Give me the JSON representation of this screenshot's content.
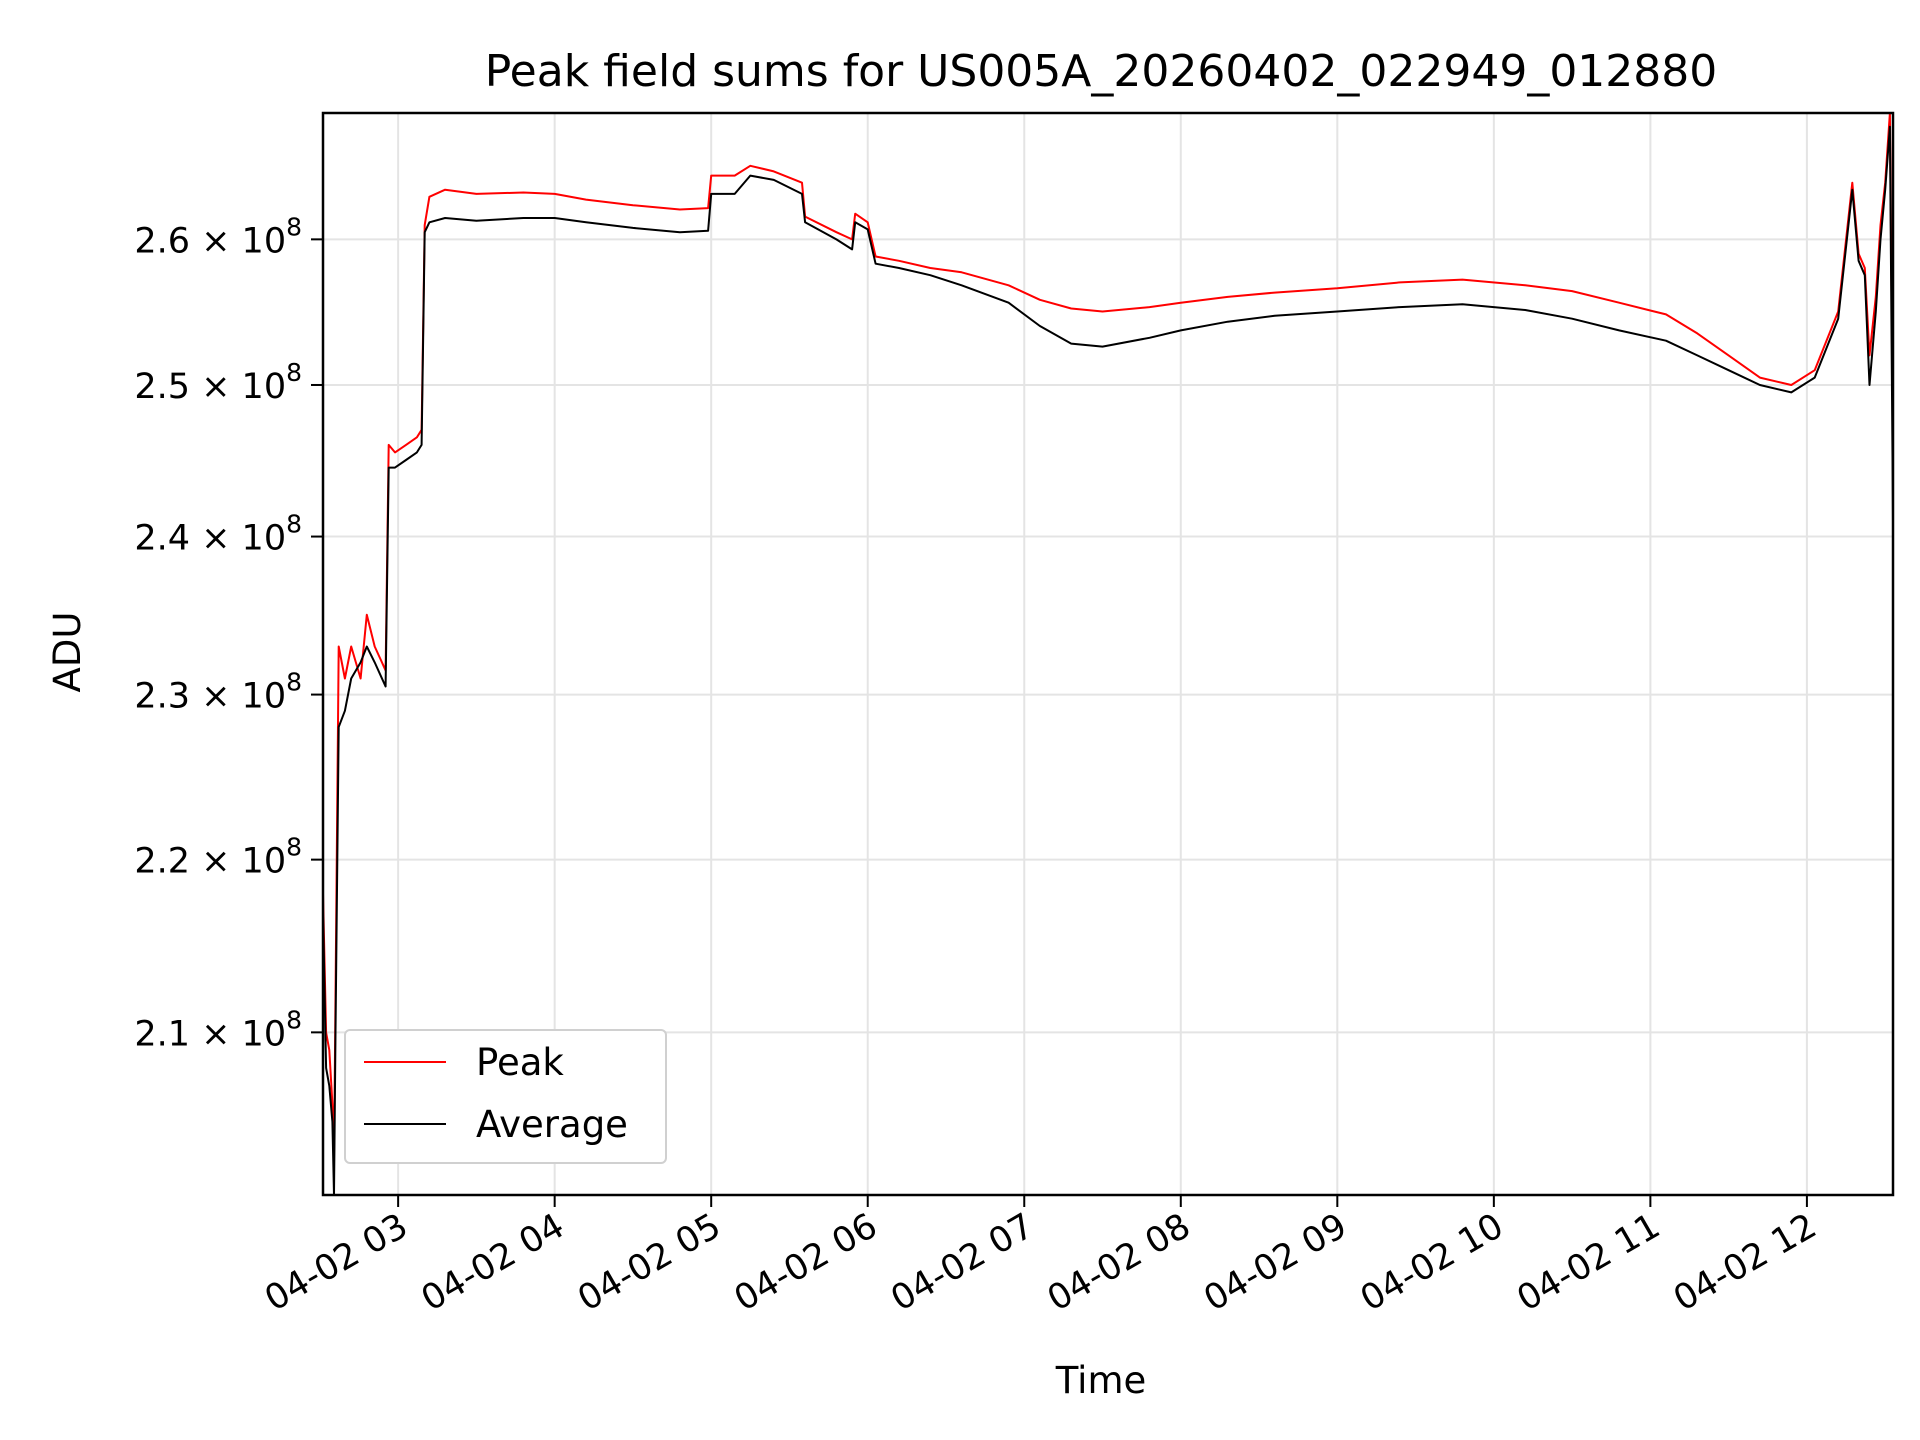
{
  "chart_data": {
    "type": "line",
    "title": "Peak field sums for US005A_20260402_022949_012880",
    "xlabel": "Time",
    "ylabel": "ADU",
    "x_ticks": [
      "04-02 03",
      "04-02 04",
      "04-02 05",
      "04-02 06",
      "04-02 07",
      "04-02 08",
      "04-02 09",
      "04-02 10",
      "04-02 11",
      "04-02 12"
    ],
    "x_tick_hours": [
      3,
      4,
      5,
      6,
      7,
      8,
      9,
      10,
      11,
      12
    ],
    "xlim_hours": [
      2.52,
      12.55
    ],
    "y_ticks": [
      {
        "value": 210000000.0,
        "mantissa": "2.1",
        "label": "2.1 × 10^8"
      },
      {
        "value": 220000000.0,
        "mantissa": "2.2",
        "label": "2.2 × 10^8"
      },
      {
        "value": 230000000.0,
        "mantissa": "2.3",
        "label": "2.3 × 10^8"
      },
      {
        "value": 240000000.0,
        "mantissa": "2.4",
        "label": "2.4 × 10^8"
      },
      {
        "value": 250000000.0,
        "mantissa": "2.5",
        "label": "2.5 × 10^8"
      },
      {
        "value": 260000000.0,
        "mantissa": "2.6",
        "label": "2.6 × 10^8"
      }
    ],
    "y_multiplier_text": "× 10",
    "y_exponent": "8",
    "yscale": "log",
    "ylim": [
      201000000.0,
      269000000.0
    ],
    "grid": true,
    "legend_position": "lower-left",
    "series": [
      {
        "name": "Peak",
        "color": "#ff0000",
        "points": [
          [
            2.52,
            218000000.0
          ],
          [
            2.54,
            210000000.0
          ],
          [
            2.56,
            209000000.0
          ],
          [
            2.58,
            206000000.0
          ],
          [
            2.59,
            203000000.0
          ],
          [
            2.6,
            212000000.0
          ],
          [
            2.62,
            233000000.0
          ],
          [
            2.66,
            231000000.0
          ],
          [
            2.7,
            233000000.0
          ],
          [
            2.76,
            231000000.0
          ],
          [
            2.8,
            235000000.0
          ],
          [
            2.85,
            233000000.0
          ],
          [
            2.92,
            231500000.0
          ],
          [
            2.94,
            246000000.0
          ],
          [
            2.98,
            245500000.0
          ],
          [
            3.05,
            246000000.0
          ],
          [
            3.12,
            246500000.0
          ],
          [
            3.15,
            247000000.0
          ],
          [
            3.17,
            261000000.0
          ],
          [
            3.2,
            263000000.0
          ],
          [
            3.3,
            263500000.0
          ],
          [
            3.5,
            263200000.0
          ],
          [
            3.8,
            263300000.0
          ],
          [
            4.0,
            263200000.0
          ],
          [
            4.2,
            262800000.0
          ],
          [
            4.5,
            262400000.0
          ],
          [
            4.8,
            262100000.0
          ],
          [
            4.98,
            262200000.0
          ],
          [
            5.0,
            264500000.0
          ],
          [
            5.15,
            264500000.0
          ],
          [
            5.25,
            265200000.0
          ],
          [
            5.4,
            264800000.0
          ],
          [
            5.58,
            264000000.0
          ],
          [
            5.6,
            261600000.0
          ],
          [
            5.8,
            260500000.0
          ],
          [
            5.9,
            260000000.0
          ],
          [
            5.92,
            261800000.0
          ],
          [
            6.0,
            261200000.0
          ],
          [
            6.05,
            258800000.0
          ],
          [
            6.2,
            258500000.0
          ],
          [
            6.4,
            258000000.0
          ],
          [
            6.6,
            257700000.0
          ],
          [
            6.9,
            256800000.0
          ],
          [
            7.1,
            255800000.0
          ],
          [
            7.3,
            255200000.0
          ],
          [
            7.5,
            255000000.0
          ],
          [
            7.8,
            255300000.0
          ],
          [
            8.0,
            255600000.0
          ],
          [
            8.3,
            256000000.0
          ],
          [
            8.6,
            256300000.0
          ],
          [
            9.0,
            256600000.0
          ],
          [
            9.4,
            257000000.0
          ],
          [
            9.8,
            257200000.0
          ],
          [
            10.2,
            256800000.0
          ],
          [
            10.5,
            256400000.0
          ],
          [
            10.8,
            255600000.0
          ],
          [
            11.1,
            254800000.0
          ],
          [
            11.3,
            253500000.0
          ],
          [
            11.5,
            252000000.0
          ],
          [
            11.7,
            250500000.0
          ],
          [
            11.9,
            250000000.0
          ],
          [
            12.05,
            251000000.0
          ],
          [
            12.2,
            255000000.0
          ],
          [
            12.29,
            264000000.0
          ],
          [
            12.33,
            259000000.0
          ],
          [
            12.37,
            258000000.0
          ],
          [
            12.4,
            252000000.0
          ],
          [
            12.44,
            256000000.0
          ],
          [
            12.47,
            261000000.0
          ],
          [
            12.5,
            264000000.0
          ],
          [
            12.53,
            269000000.0
          ],
          [
            12.55,
            245000000.0
          ]
        ]
      },
      {
        "name": "Average",
        "color": "#000000",
        "points": [
          [
            2.52,
            217000000.0
          ],
          [
            2.54,
            208000000.0
          ],
          [
            2.56,
            207000000.0
          ],
          [
            2.58,
            205000000.0
          ],
          [
            2.59,
            201000000.0
          ],
          [
            2.6,
            210000000.0
          ],
          [
            2.62,
            228000000.0
          ],
          [
            2.66,
            229000000.0
          ],
          [
            2.7,
            231000000.0
          ],
          [
            2.76,
            232000000.0
          ],
          [
            2.8,
            233000000.0
          ],
          [
            2.85,
            232000000.0
          ],
          [
            2.92,
            230500000.0
          ],
          [
            2.94,
            244500000.0
          ],
          [
            2.98,
            244500000.0
          ],
          [
            3.05,
            245000000.0
          ],
          [
            3.12,
            245500000.0
          ],
          [
            3.15,
            246000000.0
          ],
          [
            3.17,
            260500000.0
          ],
          [
            3.2,
            261200000.0
          ],
          [
            3.3,
            261500000.0
          ],
          [
            3.5,
            261300000.0
          ],
          [
            3.8,
            261500000.0
          ],
          [
            4.0,
            261500000.0
          ],
          [
            4.2,
            261200000.0
          ],
          [
            4.5,
            260800000.0
          ],
          [
            4.8,
            260500000.0
          ],
          [
            4.98,
            260600000.0
          ],
          [
            5.0,
            263200000.0
          ],
          [
            5.15,
            263200000.0
          ],
          [
            5.25,
            264500000.0
          ],
          [
            5.4,
            264200000.0
          ],
          [
            5.58,
            263200000.0
          ],
          [
            5.6,
            261200000.0
          ],
          [
            5.8,
            260000000.0
          ],
          [
            5.9,
            259300000.0
          ],
          [
            5.92,
            261200000.0
          ],
          [
            6.0,
            260700000.0
          ],
          [
            6.05,
            258300000.0
          ],
          [
            6.2,
            258000000.0
          ],
          [
            6.4,
            257500000.0
          ],
          [
            6.6,
            256800000.0
          ],
          [
            6.9,
            255600000.0
          ],
          [
            7.1,
            254000000.0
          ],
          [
            7.3,
            252800000.0
          ],
          [
            7.5,
            252600000.0
          ],
          [
            7.8,
            253200000.0
          ],
          [
            8.0,
            253700000.0
          ],
          [
            8.3,
            254300000.0
          ],
          [
            8.6,
            254700000.0
          ],
          [
            9.0,
            255000000.0
          ],
          [
            9.4,
            255300000.0
          ],
          [
            9.8,
            255500000.0
          ],
          [
            10.2,
            255100000.0
          ],
          [
            10.5,
            254500000.0
          ],
          [
            10.8,
            253700000.0
          ],
          [
            11.1,
            253000000.0
          ],
          [
            11.3,
            252000000.0
          ],
          [
            11.5,
            251000000.0
          ],
          [
            11.7,
            250000000.0
          ],
          [
            11.9,
            249500000.0
          ],
          [
            12.05,
            250500000.0
          ],
          [
            12.2,
            254500000.0
          ],
          [
            12.29,
            263500000.0
          ],
          [
            12.33,
            258500000.0
          ],
          [
            12.37,
            257500000.0
          ],
          [
            12.4,
            250000000.0
          ],
          [
            12.44,
            255000000.0
          ],
          [
            12.47,
            260000000.0
          ],
          [
            12.5,
            263500000.0
          ],
          [
            12.53,
            268000000.0
          ],
          [
            12.55,
            241000000.0
          ]
        ]
      }
    ]
  }
}
